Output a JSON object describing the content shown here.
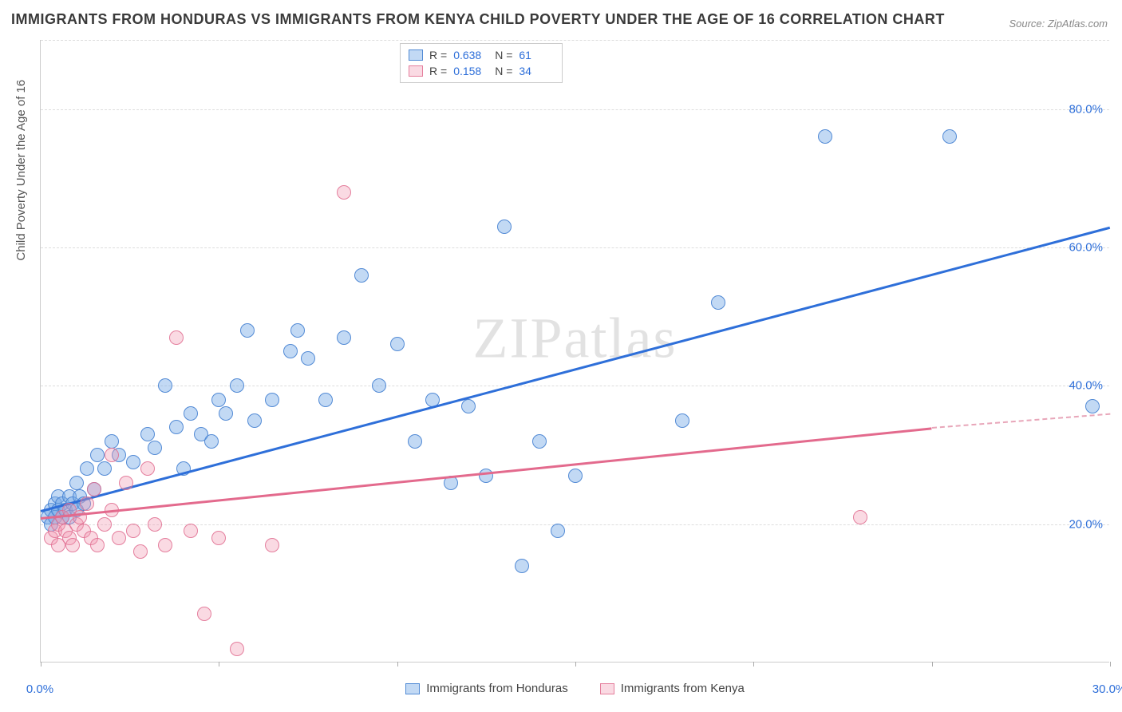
{
  "title": "IMMIGRANTS FROM HONDURAS VS IMMIGRANTS FROM KENYA CHILD POVERTY UNDER THE AGE OF 16 CORRELATION CHART",
  "source": "Source: ZipAtlas.com",
  "watermark": "ZIPatlas",
  "y_axis_label": "Child Poverty Under the Age of 16",
  "chart": {
    "type": "scatter",
    "xlim": [
      0,
      30
    ],
    "ylim": [
      0,
      90
    ],
    "x_ticks": [
      0,
      5,
      10,
      15,
      20,
      25,
      30
    ],
    "x_tick_labels": {
      "0": "0.0%",
      "30": "30.0%"
    },
    "y_ticks": [
      20,
      40,
      60,
      80
    ],
    "y_tick_labels": {
      "20": "20.0%",
      "40": "40.0%",
      "60": "60.0%",
      "80": "80.0%"
    },
    "grid_color": "#dddddd",
    "background_color": "#ffffff",
    "marker_size": 18,
    "series": [
      {
        "name": "Immigrants from Honduras",
        "color_fill": "rgba(120,170,230,0.45)",
        "color_border": "rgba(70,130,210,0.9)",
        "R": "0.638",
        "N": "61",
        "trend": {
          "x0": 0,
          "y0": 22,
          "x1": 30,
          "y1": 63,
          "color": "#2e6fd9",
          "width": 2.5
        },
        "points": [
          [
            0.2,
            21
          ],
          [
            0.3,
            22
          ],
          [
            0.3,
            20
          ],
          [
            0.4,
            23
          ],
          [
            0.4,
            21
          ],
          [
            0.5,
            22
          ],
          [
            0.5,
            24
          ],
          [
            0.6,
            23
          ],
          [
            0.6,
            21
          ],
          [
            0.7,
            22
          ],
          [
            0.8,
            24
          ],
          [
            0.8,
            21
          ],
          [
            0.9,
            23
          ],
          [
            1.0,
            22
          ],
          [
            1.0,
            26
          ],
          [
            1.1,
            24
          ],
          [
            1.2,
            23
          ],
          [
            1.3,
            28
          ],
          [
            1.5,
            25
          ],
          [
            1.6,
            30
          ],
          [
            1.8,
            28
          ],
          [
            2.0,
            32
          ],
          [
            2.2,
            30
          ],
          [
            2.6,
            29
          ],
          [
            3.0,
            33
          ],
          [
            3.2,
            31
          ],
          [
            3.5,
            40
          ],
          [
            3.8,
            34
          ],
          [
            4.0,
            28
          ],
          [
            4.2,
            36
          ],
          [
            4.5,
            33
          ],
          [
            4.8,
            32
          ],
          [
            5.0,
            38
          ],
          [
            5.2,
            36
          ],
          [
            5.5,
            40
          ],
          [
            5.8,
            48
          ],
          [
            6.0,
            35
          ],
          [
            6.5,
            38
          ],
          [
            7.0,
            45
          ],
          [
            7.2,
            48
          ],
          [
            7.5,
            44
          ],
          [
            8.0,
            38
          ],
          [
            8.5,
            47
          ],
          [
            9.0,
            56
          ],
          [
            9.5,
            40
          ],
          [
            10.0,
            46
          ],
          [
            10.5,
            32
          ],
          [
            11.0,
            38
          ],
          [
            11.5,
            26
          ],
          [
            12.0,
            37
          ],
          [
            12.5,
            27
          ],
          [
            13.0,
            63
          ],
          [
            13.5,
            14
          ],
          [
            14.0,
            32
          ],
          [
            14.5,
            19
          ],
          [
            15.0,
            27
          ],
          [
            18.0,
            35
          ],
          [
            19.0,
            52
          ],
          [
            22.0,
            76
          ],
          [
            25.5,
            76
          ],
          [
            29.5,
            37
          ]
        ]
      },
      {
        "name": "Immigrants from Kenya",
        "color_fill": "rgba(240,150,175,0.35)",
        "color_border": "rgba(225,110,145,0.85)",
        "R": "0.158",
        "N": "34",
        "trend": {
          "x0": 0,
          "y0": 21,
          "x1": 25,
          "y1": 34,
          "color": "#e36a8d",
          "width": 2.5,
          "dash_extend_to": 30,
          "dash_y": 36
        },
        "points": [
          [
            0.3,
            18
          ],
          [
            0.4,
            19
          ],
          [
            0.5,
            20
          ],
          [
            0.5,
            17
          ],
          [
            0.6,
            21
          ],
          [
            0.7,
            19
          ],
          [
            0.8,
            18
          ],
          [
            0.8,
            22
          ],
          [
            0.9,
            17
          ],
          [
            1.0,
            20
          ],
          [
            1.1,
            21
          ],
          [
            1.2,
            19
          ],
          [
            1.3,
            23
          ],
          [
            1.4,
            18
          ],
          [
            1.5,
            25
          ],
          [
            1.6,
            17
          ],
          [
            1.8,
            20
          ],
          [
            2.0,
            22
          ],
          [
            2.0,
            30
          ],
          [
            2.2,
            18
          ],
          [
            2.4,
            26
          ],
          [
            2.6,
            19
          ],
          [
            2.8,
            16
          ],
          [
            3.0,
            28
          ],
          [
            3.2,
            20
          ],
          [
            3.5,
            17
          ],
          [
            3.8,
            47
          ],
          [
            4.2,
            19
          ],
          [
            4.6,
            7
          ],
          [
            5.0,
            18
          ],
          [
            5.5,
            2
          ],
          [
            6.5,
            17
          ],
          [
            8.5,
            68
          ],
          [
            23.0,
            21
          ]
        ]
      }
    ]
  },
  "legend_top": {
    "rows": [
      {
        "swatch": "blue",
        "r_label": "R =",
        "r_val": "0.638",
        "n_label": "N =",
        "n_val": "61"
      },
      {
        "swatch": "pink",
        "r_label": "R =",
        "r_val": "0.158",
        "n_label": "N =",
        "n_val": "34"
      }
    ]
  },
  "legend_bottom": {
    "items": [
      {
        "swatch": "blue",
        "label": "Immigrants from Honduras"
      },
      {
        "swatch": "pink",
        "label": "Immigrants from Kenya"
      }
    ]
  }
}
